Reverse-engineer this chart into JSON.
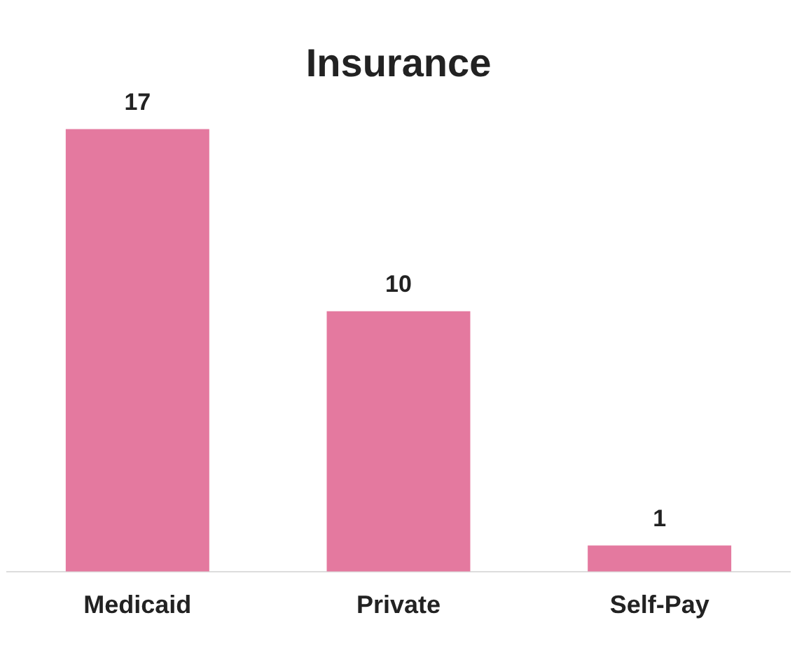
{
  "chart_data": {
    "type": "bar",
    "title": "Insurance",
    "categories": [
      "Medicaid",
      "Private",
      "Self-Pay"
    ],
    "values": [
      17,
      10,
      1
    ],
    "color": "#e4799f",
    "data_labels": true,
    "grid": false,
    "legend": false
  }
}
